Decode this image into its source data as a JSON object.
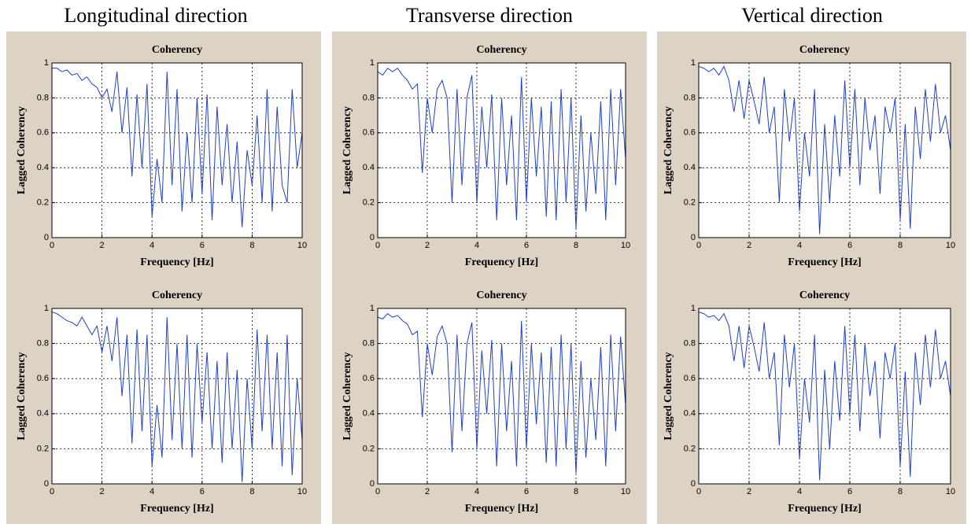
{
  "headers": [
    "Longitudinal direction",
    "Transverse direction",
    "Vertical direction"
  ],
  "chart_data": [
    {
      "type": "line",
      "title": "Coherency",
      "xlabel": "Frequency [Hz]",
      "ylabel": "Lagged Coherency",
      "color": "#1f3fd0",
      "grid": true,
      "xlim": [
        0,
        10
      ],
      "ylim": [
        0,
        1
      ],
      "xticks": [
        0,
        2,
        4,
        6,
        8,
        10
      ],
      "yticks": [
        0,
        0.2,
        0.4,
        0.6,
        0.8,
        1
      ],
      "x": [
        0,
        0.2,
        0.4,
        0.6,
        0.8,
        1,
        1.2,
        1.4,
        1.6,
        1.8,
        2,
        2.2,
        2.4,
        2.6,
        2.8,
        3,
        3.2,
        3.4,
        3.6,
        3.8,
        4,
        4.2,
        4.4,
        4.6,
        4.8,
        5,
        5.2,
        5.4,
        5.6,
        5.8,
        6,
        6.2,
        6.4,
        6.6,
        6.8,
        7,
        7.2,
        7.4,
        7.6,
        7.8,
        8,
        8.2,
        8.4,
        8.6,
        8.8,
        9,
        9.2,
        9.4,
        9.6,
        9.8,
        10
      ],
      "values": [
        0.97,
        0.97,
        0.95,
        0.96,
        0.93,
        0.94,
        0.9,
        0.92,
        0.88,
        0.86,
        0.8,
        0.85,
        0.72,
        0.95,
        0.6,
        0.86,
        0.35,
        0.82,
        0.4,
        0.88,
        0.12,
        0.45,
        0.2,
        0.95,
        0.3,
        0.85,
        0.15,
        0.6,
        0.2,
        0.8,
        0.25,
        0.82,
        0.1,
        0.75,
        0.3,
        0.65,
        0.2,
        0.55,
        0.06,
        0.5,
        0.3,
        0.7,
        0.2,
        0.85,
        0.15,
        0.75,
        0.3,
        0.2,
        0.85,
        0.4,
        0.6
      ]
    },
    {
      "type": "line",
      "title": "Coherency",
      "xlabel": "Frequency [Hz]",
      "ylabel": "Lagged Coherency",
      "color": "#1f3fd0",
      "grid": true,
      "xlim": [
        0,
        10
      ],
      "ylim": [
        0,
        1
      ],
      "xticks": [
        0,
        2,
        4,
        6,
        8,
        10
      ],
      "yticks": [
        0,
        0.2,
        0.4,
        0.6,
        0.8,
        1
      ],
      "x": [
        0,
        0.2,
        0.4,
        0.6,
        0.8,
        1,
        1.2,
        1.4,
        1.6,
        1.8,
        2,
        2.2,
        2.4,
        2.6,
        2.8,
        3,
        3.2,
        3.4,
        3.6,
        3.8,
        4,
        4.2,
        4.4,
        4.6,
        4.8,
        5,
        5.2,
        5.4,
        5.6,
        5.8,
        6,
        6.2,
        6.4,
        6.6,
        6.8,
        7,
        7.2,
        7.4,
        7.6,
        7.8,
        8,
        8.2,
        8.4,
        8.6,
        8.8,
        9,
        9.2,
        9.4,
        9.6,
        9.8,
        10
      ],
      "values": [
        0.95,
        0.93,
        0.97,
        0.95,
        0.97,
        0.93,
        0.9,
        0.85,
        0.88,
        0.37,
        0.8,
        0.6,
        0.85,
        0.9,
        0.8,
        0.2,
        0.85,
        0.3,
        0.8,
        0.93,
        0.2,
        0.75,
        0.4,
        0.82,
        0.1,
        0.8,
        0.3,
        0.7,
        0.1,
        0.92,
        0.2,
        0.8,
        0.35,
        0.75,
        0.12,
        0.78,
        0.1,
        0.85,
        0.2,
        0.8,
        0.05,
        0.7,
        0.15,
        0.6,
        0.25,
        0.78,
        0.1,
        0.85,
        0.3,
        0.85,
        0.45
      ]
    },
    {
      "type": "line",
      "title": "Coherency",
      "xlabel": "Frequency [Hz]",
      "ylabel": "Lagged Coherency",
      "color": "#1f3fd0",
      "grid": true,
      "xlim": [
        0,
        10
      ],
      "ylim": [
        0,
        1
      ],
      "xticks": [
        0,
        2,
        4,
        6,
        8,
        10
      ],
      "yticks": [
        0,
        0.2,
        0.4,
        0.6,
        0.8,
        1
      ],
      "x": [
        0,
        0.2,
        0.4,
        0.6,
        0.8,
        1,
        1.2,
        1.4,
        1.6,
        1.8,
        2,
        2.2,
        2.4,
        2.6,
        2.8,
        3,
        3.2,
        3.4,
        3.6,
        3.8,
        4,
        4.2,
        4.4,
        4.6,
        4.8,
        5,
        5.2,
        5.4,
        5.6,
        5.8,
        6,
        6.2,
        6.4,
        6.6,
        6.8,
        7,
        7.2,
        7.4,
        7.6,
        7.8,
        8,
        8.2,
        8.4,
        8.6,
        8.8,
        9,
        9.2,
        9.4,
        9.6,
        9.8,
        10
      ],
      "values": [
        0.98,
        0.97,
        0.95,
        0.97,
        0.93,
        0.98,
        0.9,
        0.72,
        0.9,
        0.68,
        0.9,
        0.78,
        0.65,
        0.92,
        0.6,
        0.75,
        0.2,
        0.85,
        0.55,
        0.8,
        0.15,
        0.6,
        0.35,
        0.85,
        0.02,
        0.65,
        0.2,
        0.7,
        0.35,
        0.9,
        0.4,
        0.85,
        0.3,
        0.8,
        0.5,
        0.7,
        0.25,
        0.75,
        0.6,
        0.8,
        0.1,
        0.65,
        0.05,
        0.75,
        0.45,
        0.85,
        0.55,
        0.88,
        0.6,
        0.7,
        0.5
      ]
    },
    {
      "type": "line",
      "title": "Coherency",
      "xlabel": "Frequency [Hz]",
      "ylabel": "Lagged Coherency",
      "color": "#1f3fd0",
      "grid": true,
      "xlim": [
        0,
        10
      ],
      "ylim": [
        0,
        1
      ],
      "xticks": [
        0,
        2,
        4,
        6,
        8,
        10
      ],
      "yticks": [
        0,
        0.2,
        0.4,
        0.6,
        0.8,
        1
      ],
      "x": [
        0,
        0.2,
        0.4,
        0.6,
        0.8,
        1,
        1.2,
        1.4,
        1.6,
        1.8,
        2,
        2.2,
        2.4,
        2.6,
        2.8,
        3,
        3.2,
        3.4,
        3.6,
        3.8,
        4,
        4.2,
        4.4,
        4.6,
        4.8,
        5,
        5.2,
        5.4,
        5.6,
        5.8,
        6,
        6.2,
        6.4,
        6.6,
        6.8,
        7,
        7.2,
        7.4,
        7.6,
        7.8,
        8,
        8.2,
        8.4,
        8.6,
        8.8,
        9,
        9.2,
        9.4,
        9.6,
        9.8,
        10
      ],
      "values": [
        0.98,
        0.97,
        0.95,
        0.93,
        0.92,
        0.9,
        0.95,
        0.9,
        0.85,
        0.9,
        0.75,
        0.9,
        0.7,
        0.95,
        0.5,
        0.85,
        0.23,
        0.88,
        0.3,
        0.85,
        0.1,
        0.45,
        0.15,
        0.95,
        0.25,
        0.8,
        0.2,
        0.85,
        0.15,
        0.8,
        0.35,
        0.75,
        0.2,
        0.7,
        0.12,
        0.75,
        0.2,
        0.65,
        0.01,
        0.6,
        0.2,
        0.88,
        0.3,
        0.85,
        0.2,
        0.75,
        0.1,
        0.85,
        0.05,
        0.6,
        0.25
      ]
    },
    {
      "type": "line",
      "title": "Coherency",
      "xlabel": "Frequency [Hz]",
      "ylabel": "Lagged Coherency",
      "color": "#1f3fd0",
      "grid": true,
      "xlim": [
        0,
        10
      ],
      "ylim": [
        0,
        1
      ],
      "xticks": [
        0,
        2,
        4,
        6,
        8,
        10
      ],
      "yticks": [
        0,
        0.2,
        0.4,
        0.6,
        0.8,
        1
      ],
      "x": [
        0,
        0.2,
        0.4,
        0.6,
        0.8,
        1,
        1.2,
        1.4,
        1.6,
        1.8,
        2,
        2.2,
        2.4,
        2.6,
        2.8,
        3,
        3.2,
        3.4,
        3.6,
        3.8,
        4,
        4.2,
        4.4,
        4.6,
        4.8,
        5,
        5.2,
        5.4,
        5.6,
        5.8,
        6,
        6.2,
        6.4,
        6.6,
        6.8,
        7,
        7.2,
        7.4,
        7.6,
        7.8,
        8,
        8.2,
        8.4,
        8.6,
        8.8,
        9,
        9.2,
        9.4,
        9.6,
        9.8,
        10
      ],
      "values": [
        0.95,
        0.94,
        0.97,
        0.95,
        0.96,
        0.93,
        0.91,
        0.85,
        0.87,
        0.38,
        0.8,
        0.62,
        0.84,
        0.9,
        0.8,
        0.18,
        0.85,
        0.3,
        0.8,
        0.92,
        0.2,
        0.76,
        0.4,
        0.82,
        0.1,
        0.8,
        0.3,
        0.7,
        0.1,
        0.93,
        0.2,
        0.8,
        0.34,
        0.75,
        0.12,
        0.78,
        0.1,
        0.85,
        0.2,
        0.8,
        0.06,
        0.7,
        0.15,
        0.6,
        0.25,
        0.78,
        0.1,
        0.85,
        0.3,
        0.84,
        0.45
      ]
    },
    {
      "type": "line",
      "title": "Coherency",
      "xlabel": "Frequency [Hz]",
      "ylabel": "Lagged Coherency",
      "color": "#1f3fd0",
      "grid": true,
      "xlim": [
        0,
        10
      ],
      "ylim": [
        0,
        1
      ],
      "xticks": [
        0,
        2,
        4,
        6,
        8,
        10
      ],
      "yticks": [
        0,
        0.2,
        0.4,
        0.6,
        0.8,
        1
      ],
      "x": [
        0,
        0.2,
        0.4,
        0.6,
        0.8,
        1,
        1.2,
        1.4,
        1.6,
        1.8,
        2,
        2.2,
        2.4,
        2.6,
        2.8,
        3,
        3.2,
        3.4,
        3.6,
        3.8,
        4,
        4.2,
        4.4,
        4.6,
        4.8,
        5,
        5.2,
        5.4,
        5.6,
        5.8,
        6,
        6.2,
        6.4,
        6.6,
        6.8,
        7,
        7.2,
        7.4,
        7.6,
        7.8,
        8,
        8.2,
        8.4,
        8.6,
        8.8,
        9,
        9.2,
        9.4,
        9.6,
        9.8,
        10
      ],
      "values": [
        0.98,
        0.97,
        0.95,
        0.96,
        0.93,
        0.97,
        0.9,
        0.7,
        0.9,
        0.66,
        0.9,
        0.78,
        0.64,
        0.92,
        0.6,
        0.75,
        0.22,
        0.85,
        0.55,
        0.8,
        0.14,
        0.6,
        0.35,
        0.85,
        0.02,
        0.65,
        0.2,
        0.7,
        0.36,
        0.9,
        0.4,
        0.85,
        0.3,
        0.8,
        0.5,
        0.7,
        0.26,
        0.75,
        0.6,
        0.8,
        0.1,
        0.64,
        0.04,
        0.75,
        0.45,
        0.85,
        0.55,
        0.88,
        0.6,
        0.7,
        0.5
      ]
    }
  ]
}
